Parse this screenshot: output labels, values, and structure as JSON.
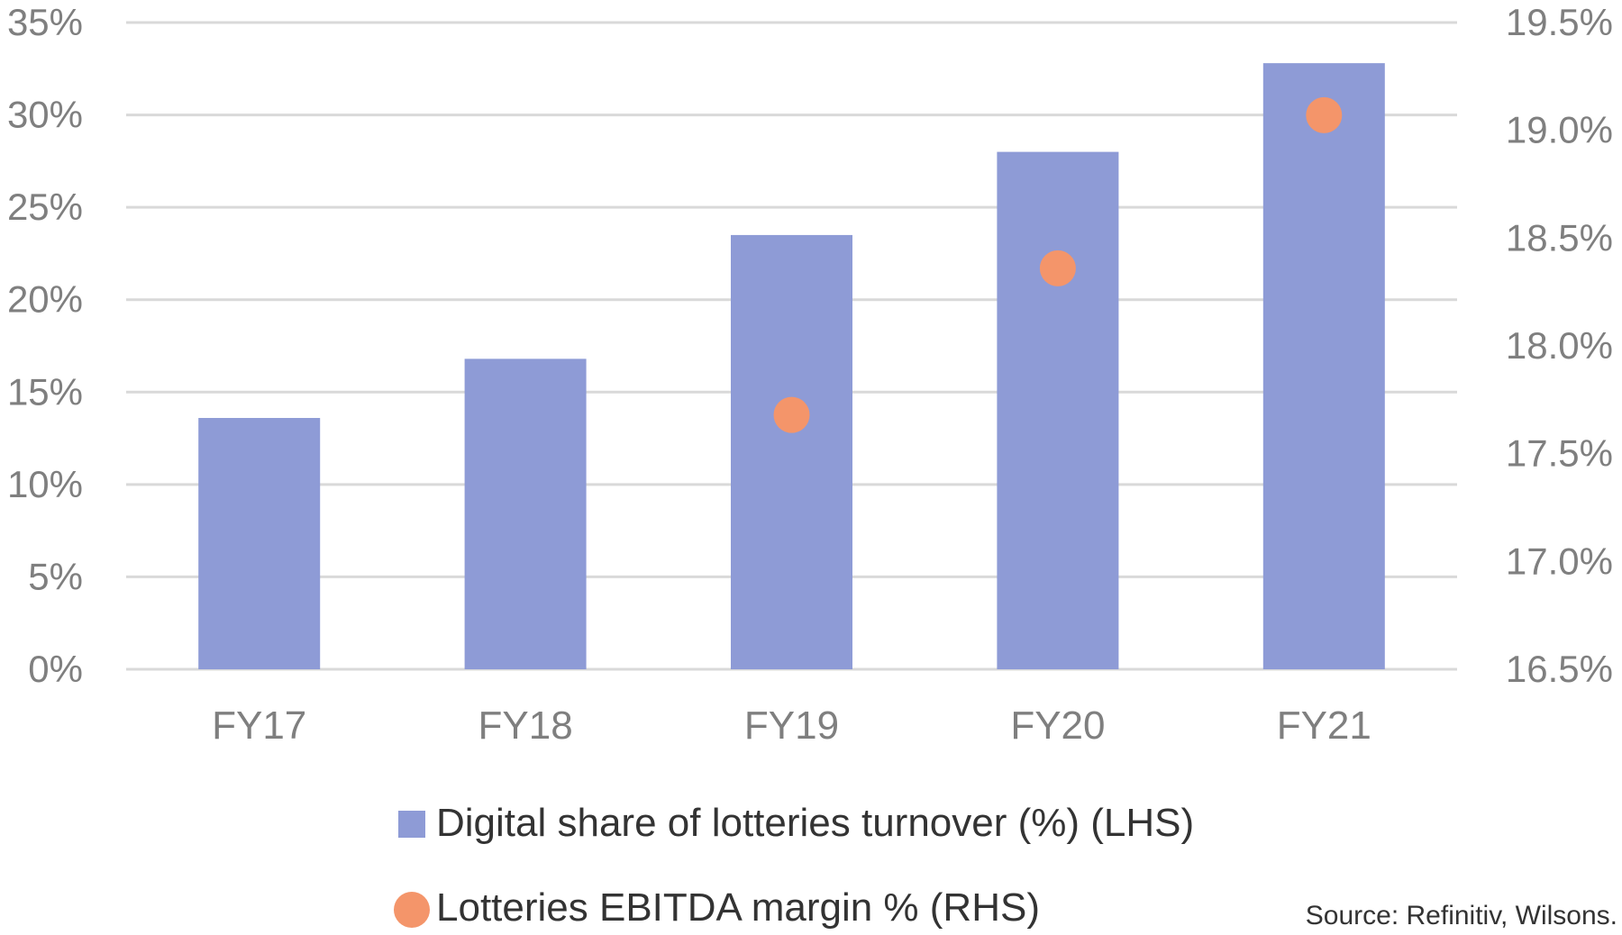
{
  "chart_data": {
    "type": "bar",
    "categories": [
      "FY17",
      "FY18",
      "FY19",
      "FY20",
      "FY21"
    ],
    "series": [
      {
        "name": "Digital share of lotteries turnover (%) (LHS)",
        "type": "bar",
        "axis": "left",
        "color": "#8e9bd6",
        "values": [
          13.6,
          16.8,
          23.5,
          28.0,
          32.8
        ]
      },
      {
        "name": "Lotteries EBITDA margin % (RHS)",
        "type": "scatter",
        "axis": "right",
        "color": "#f4956a",
        "values": [
          null,
          null,
          17.68,
          18.36,
          19.07
        ]
      }
    ],
    "y_left": {
      "min": 0,
      "max": 35,
      "ticks": [
        0,
        5,
        10,
        15,
        20,
        25,
        30,
        35
      ],
      "tick_labels": [
        "0%",
        "5%",
        "10%",
        "15%",
        "20%",
        "25%",
        "30%",
        "35%"
      ]
    },
    "y_right": {
      "min": 16.5,
      "max": 19.5,
      "ticks": [
        16.5,
        17.0,
        17.5,
        18.0,
        18.5,
        19.0,
        19.5
      ],
      "tick_labels": [
        "16.5%",
        "17.0%",
        "17.5%",
        "18.0%",
        "18.5%",
        "19.0%",
        "19.5%"
      ]
    },
    "grid": true,
    "legend_position": "bottom",
    "title": "",
    "xlabel": "",
    "ylabel": ""
  },
  "legend": {
    "items": [
      {
        "label": "Digital share of lotteries turnover (%) (LHS)",
        "marker": "square",
        "color": "#8e9bd6"
      },
      {
        "label": "Lotteries EBITDA margin % (RHS)",
        "marker": "circle",
        "color": "#f4956a"
      }
    ]
  },
  "source": "Source: Refinitiv, Wilsons."
}
